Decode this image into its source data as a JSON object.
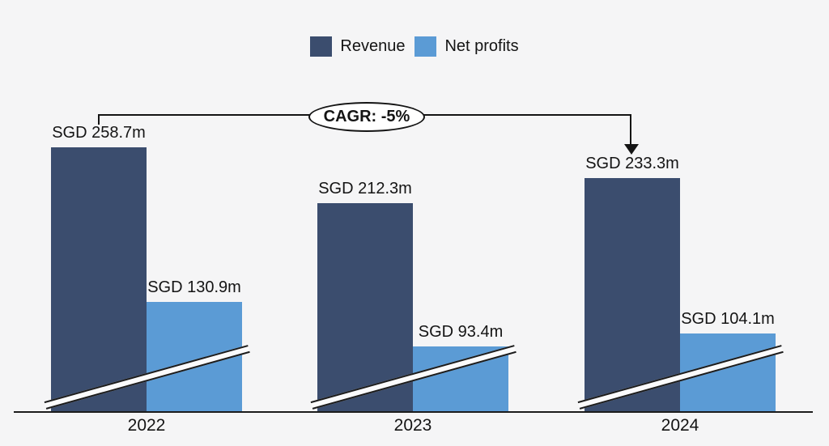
{
  "legend": {
    "items": [
      {
        "label": "Revenue",
        "color": "#3b4d6e"
      },
      {
        "label": "Net profits",
        "color": "#5b9bd5"
      }
    ]
  },
  "annotation": {
    "label": "CAGR: -5%"
  },
  "x_axis": {
    "labels": [
      "2022",
      "2023",
      "2024"
    ]
  },
  "colors": {
    "background": "#f5f5f6",
    "revenue": "#3b4d6e",
    "net_profits": "#5b9bd5",
    "axis": "#1c1c1c",
    "text": "#141414"
  },
  "chart_data": {
    "type": "bar",
    "title": "",
    "categories": [
      "2022",
      "2023",
      "2024"
    ],
    "series": [
      {
        "name": "Revenue",
        "color": "#3b4d6e",
        "values": [
          258.7,
          212.3,
          233.3
        ],
        "data_labels": [
          "SGD 258.7m",
          "SGD 212.3m",
          "SGD 233.3m"
        ]
      },
      {
        "name": "Net profits",
        "color": "#5b9bd5",
        "values": [
          130.9,
          93.4,
          104.1
        ],
        "data_labels": [
          "SGD 130.9m",
          "SGD 93.4m",
          "SGD 104.1m"
        ]
      }
    ],
    "unit": "SGD millions",
    "legend_position": "top",
    "grid": false,
    "y_axis": {
      "visible": false,
      "axis_break_marker": true
    },
    "annotations": [
      {
        "type": "arrow-callout",
        "text": "CAGR: -5%",
        "series": "Revenue",
        "from_category": "2022",
        "to_category": "2024"
      }
    ]
  }
}
